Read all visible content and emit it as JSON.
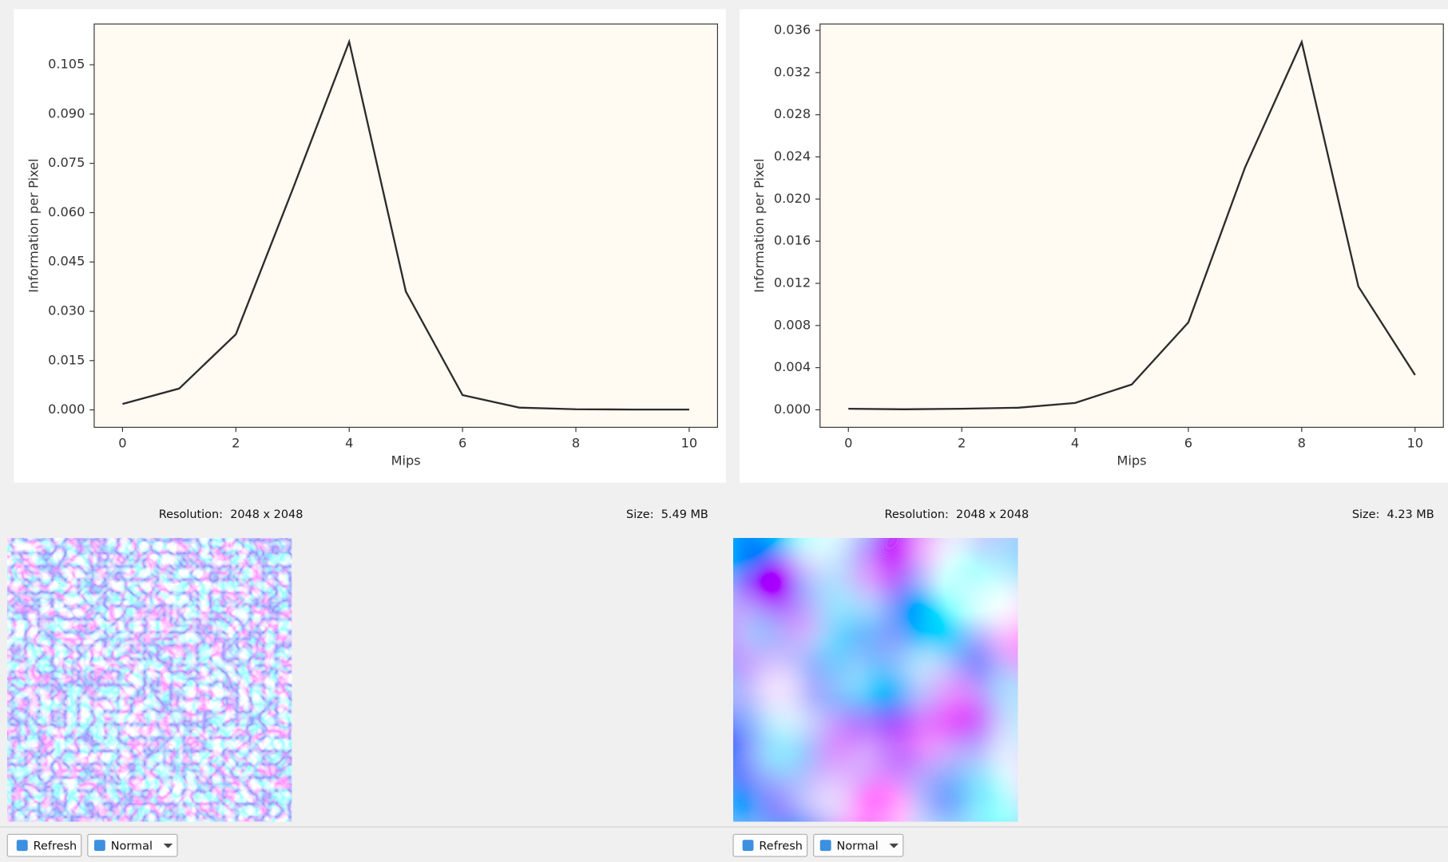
{
  "chart_data": [
    {
      "type": "line",
      "xlabel": "Mips",
      "ylabel": "Information per Pixel",
      "x": [
        0,
        1,
        2,
        3,
        4,
        5,
        6,
        7,
        8,
        9,
        10
      ],
      "values": [
        0.0018,
        0.0065,
        0.023,
        0.067,
        0.112,
        0.036,
        0.0045,
        0.0007,
        0.0002,
        0.0001,
        0.0001
      ],
      "color": "#2b2b2b",
      "facecolor": "#fffaf2",
      "xlim": [
        -0.5,
        10.5
      ],
      "ylim": [
        -0.0053,
        0.1174
      ],
      "xticks": [
        0,
        2,
        4,
        6,
        8,
        10
      ],
      "yticks": [
        {
          "value": 0,
          "label": "0.000"
        },
        {
          "value": 0.015,
          "label": "0.015"
        },
        {
          "value": 0.03,
          "label": "0.030"
        },
        {
          "value": 0.045,
          "label": "0.045"
        },
        {
          "value": 0.06,
          "label": "0.060"
        },
        {
          "value": 0.075,
          "label": "0.075"
        },
        {
          "value": 0.09,
          "label": "0.090"
        },
        {
          "value": 0.105,
          "label": "0.105"
        }
      ]
    },
    {
      "type": "line",
      "xlabel": "Mips",
      "ylabel": "Information per Pixel",
      "x": [
        0,
        1,
        2,
        3,
        4,
        5,
        6,
        7,
        8,
        9,
        10
      ],
      "values": [
        0.0001,
        5e-05,
        0.0001,
        0.0002,
        0.00065,
        0.0024,
        0.0083,
        0.023,
        0.0349,
        0.0117,
        0.0033
      ],
      "color": "#2b2b2b",
      "facecolor": "#fffaf2",
      "xlim": [
        -0.5,
        10.5
      ],
      "ylim": [
        -0.00166,
        0.03661
      ],
      "xticks": [
        0,
        2,
        4,
        6,
        8,
        10
      ],
      "yticks": [
        {
          "value": 0,
          "label": "0.000"
        },
        {
          "value": 0.004,
          "label": "0.004"
        },
        {
          "value": 0.008,
          "label": "0.008"
        },
        {
          "value": 0.012,
          "label": "0.012"
        },
        {
          "value": 0.016,
          "label": "0.016"
        },
        {
          "value": 0.02,
          "label": "0.020"
        },
        {
          "value": 0.024,
          "label": "0.024"
        },
        {
          "value": 0.028,
          "label": "0.028"
        },
        {
          "value": 0.032,
          "label": "0.032"
        },
        {
          "value": 0.036,
          "label": "0.036"
        }
      ]
    }
  ],
  "panels": [
    {
      "resolution": "Resolution:  2048 x 2048",
      "size": "Size:  5.49 MB",
      "refresh_button": "Refresh",
      "mode_button": "Normal"
    },
    {
      "resolution": "Resolution:  2048 x 2048",
      "size": "Size:  4.23 MB",
      "refresh_button": "Refresh",
      "mode_button": "Normal"
    }
  ]
}
